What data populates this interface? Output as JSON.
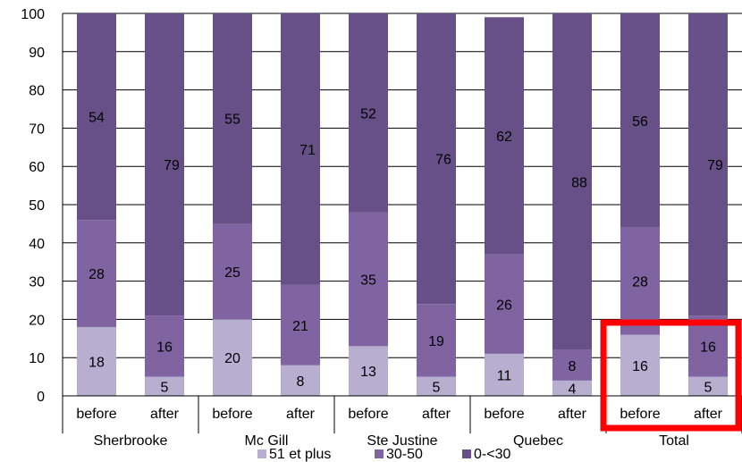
{
  "chart_data": {
    "type": "bar",
    "stacked": true,
    "groups": [
      "Sherbrooke",
      "Mc Gill",
      "Ste Justine",
      "Quebec",
      "Total"
    ],
    "categories": [
      "before",
      "after",
      "before",
      "after",
      "before",
      "after",
      "before",
      "after",
      "before",
      "after"
    ],
    "series": [
      {
        "name": "51 et plus",
        "color": "#b8aed0",
        "values": [
          18,
          5,
          20,
          8,
          13,
          5,
          11,
          4,
          16,
          5
        ]
      },
      {
        "name": "30-50",
        "color": "#8064a2",
        "values": [
          28,
          16,
          25,
          21,
          35,
          19,
          26,
          8,
          28,
          16
        ]
      },
      {
        "name": "0-<30",
        "color": "#675087",
        "values": [
          54,
          79,
          55,
          71,
          52,
          76,
          62,
          88,
          56,
          79
        ]
      }
    ],
    "ylim": [
      0,
      100
    ],
    "yticks": [
      "0",
      "10",
      "20",
      "30",
      "40",
      "50",
      "60",
      "70",
      "80",
      "90",
      "100"
    ],
    "grid": true,
    "legend": "bottom",
    "highlight": {
      "group": "Total",
      "color": "#ff0000"
    }
  }
}
